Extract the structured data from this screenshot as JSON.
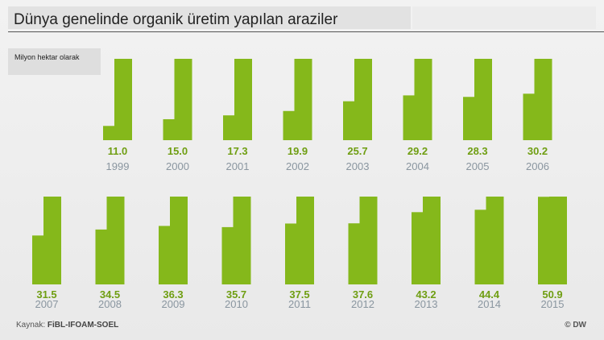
{
  "header": {
    "title": "Dünya genelinde organik üretim yapılan araziler",
    "subtitle": "Milyon hektar olarak"
  },
  "footer": {
    "source_prefix": "Kaynak:",
    "source_name": "FiBL-IFOAM-SOEL",
    "credit": "© DW"
  },
  "chart_data": {
    "type": "bar",
    "unit": "Milyon hektar",
    "categories": [
      "1999",
      "2000",
      "2001",
      "2002",
      "2003",
      "2004",
      "2005",
      "2006",
      "2007",
      "2008",
      "2009",
      "2010",
      "2011",
      "2012",
      "2013",
      "2014",
      "2015"
    ],
    "values": [
      11.0,
      15.0,
      17.3,
      19.9,
      25.7,
      29.2,
      28.3,
      30.2,
      31.5,
      34.5,
      36.3,
      35.7,
      37.5,
      37.6,
      43.2,
      44.4,
      50.9
    ],
    "value_labels": [
      "11.0",
      "15.0",
      "17.3",
      "19.9",
      "25.7",
      "29.2",
      "28.3",
      "30.2",
      "31.5",
      "34.5",
      "36.3",
      "35.7",
      "37.5",
      "37.6",
      "43.2",
      "44.4",
      "50.9"
    ],
    "ylim": [
      0,
      51
    ],
    "rows": 2,
    "colors": {
      "bar": "#85b81b",
      "value_text": "#6f9e12",
      "year_text": "#8a96a0"
    }
  }
}
